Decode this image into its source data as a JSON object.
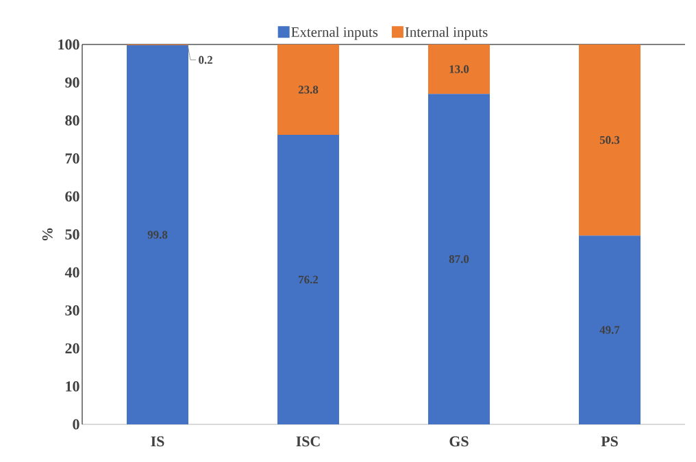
{
  "chart_data": {
    "type": "bar",
    "stacked": true,
    "ylabel": "%",
    "categories": [
      "IS",
      "ISC",
      "GS",
      "PS"
    ],
    "series": [
      {
        "name": "External inputs",
        "color": "#4472c4",
        "values": [
          99.8,
          76.2,
          87.0,
          49.7
        ],
        "value_labels": [
          "99.8",
          "76.2",
          "87.0",
          "49.7"
        ]
      },
      {
        "name": "Internal inputs",
        "color": "#ed7d31",
        "values": [
          0.2,
          23.8,
          13.0,
          50.3
        ],
        "value_labels": [
          "0.2",
          "23.8",
          "13.0",
          "50.3"
        ]
      }
    ],
    "ylim": [
      0,
      100
    ],
    "yticks": [
      0,
      10,
      20,
      30,
      40,
      50,
      60,
      70,
      80,
      90,
      100
    ],
    "legend": "top",
    "grid": false
  }
}
